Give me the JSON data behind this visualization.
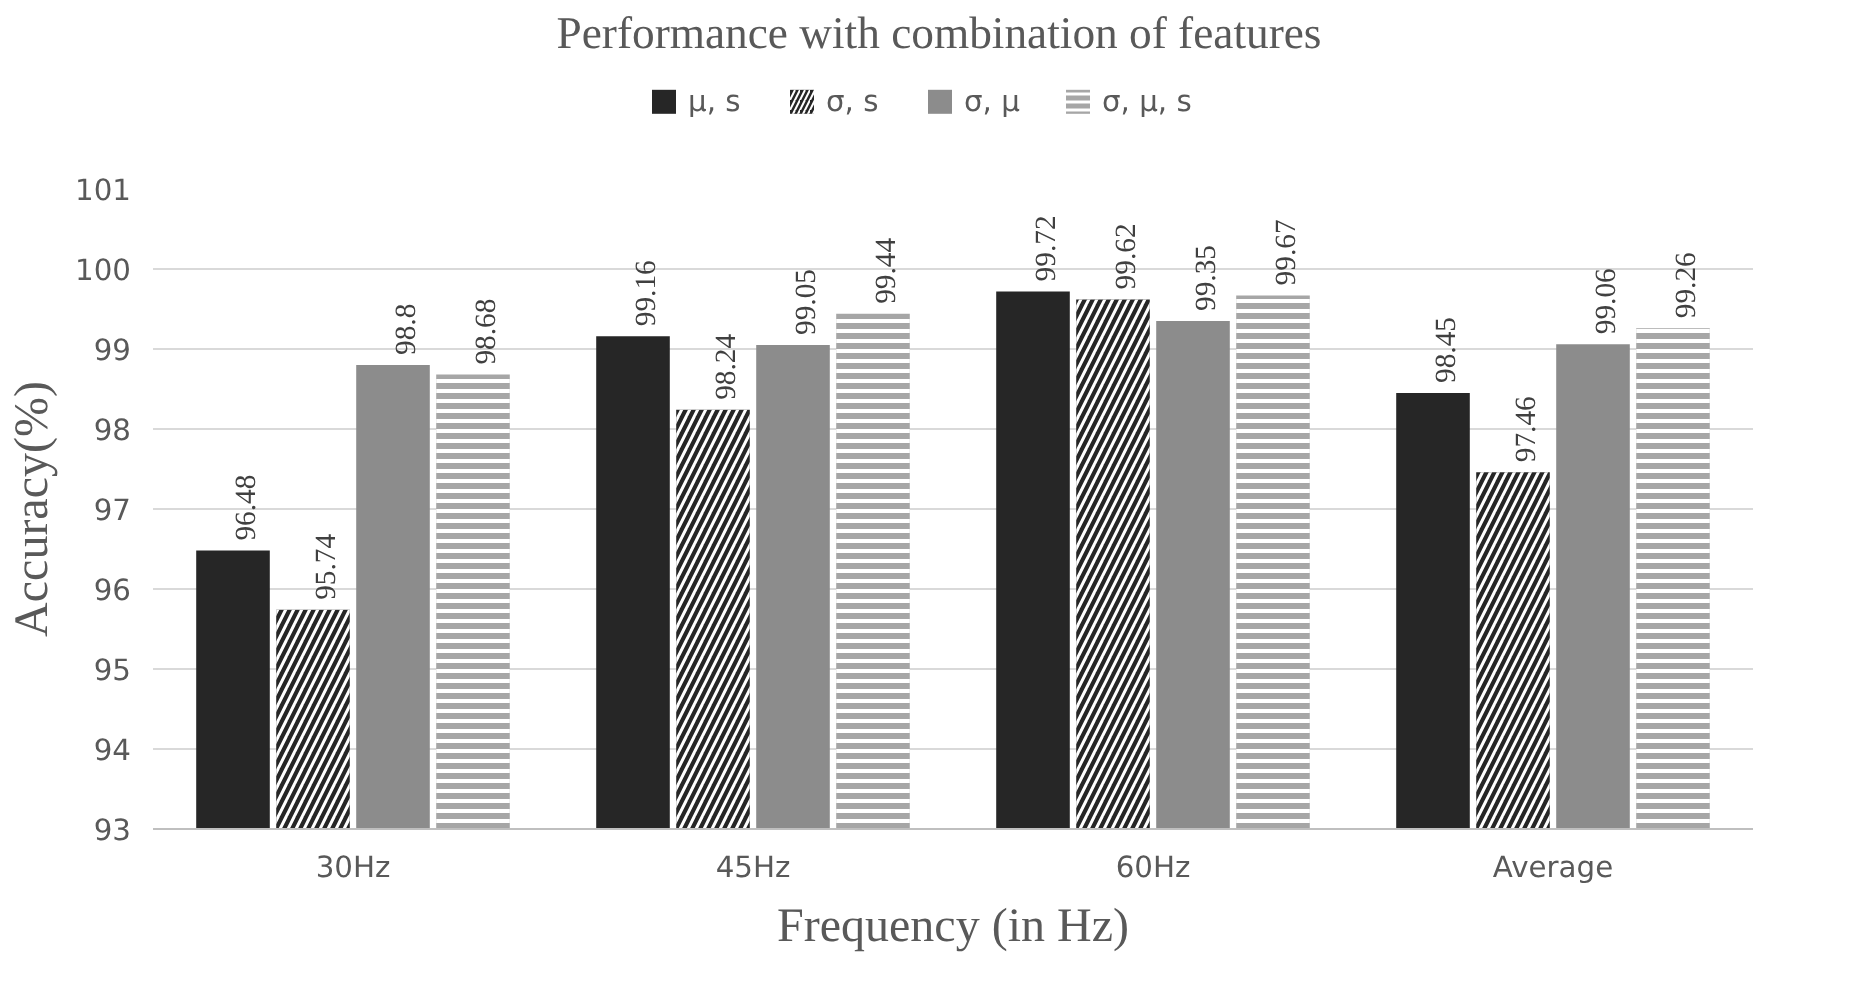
{
  "chart_data": {
    "type": "bar",
    "title": "Performance with combination of features",
    "xlabel": "Frequency (in Hz)",
    "ylabel": "Accuracy(%)",
    "categories": [
      "30Hz",
      "45Hz",
      "60Hz",
      "Average"
    ],
    "series": [
      {
        "name": "μ, s",
        "color": "#262626",
        "values": [
          96.48,
          99.16,
          99.72,
          98.45
        ]
      },
      {
        "name": "σ, s",
        "color": "#262626",
        "values": [
          95.74,
          98.24,
          99.62,
          97.46
        ]
      },
      {
        "name": "σ, μ",
        "color": "#8c8c8c",
        "values": [
          98.8,
          99.05,
          99.35,
          99.06
        ]
      },
      {
        "name": "σ, μ, s",
        "color": "#a6a6a6",
        "values": [
          98.68,
          99.44,
          99.67,
          99.26
        ]
      }
    ],
    "ylim": [
      93,
      101
    ],
    "yticks": [
      93,
      94,
      95,
      96,
      97,
      98,
      99,
      100,
      101
    ],
    "grid": "y",
    "legend": "top",
    "data_labels": true
  }
}
